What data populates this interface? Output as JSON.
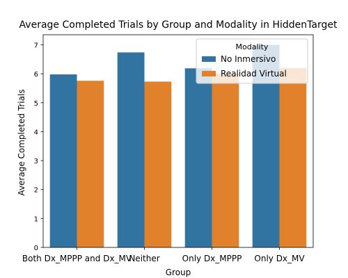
{
  "chart_data": {
    "type": "bar",
    "title": "Average Completed Trials by Group and Modality in HiddenTarget",
    "xlabel": "Group",
    "ylabel": "Average Completed Trials",
    "categories": [
      "Both Dx_MPPP and Dx_MV",
      "Neither",
      "Only Dx_MPPP",
      "Only Dx_MV"
    ],
    "series": [
      {
        "name": "No Inmersivo",
        "color": "#3274a1",
        "values": [
          5.98,
          6.74,
          6.19,
          7.0
        ]
      },
      {
        "name": "Realidad Virtual",
        "color": "#e1812c",
        "values": [
          5.76,
          5.73,
          6.0,
          6.2
        ]
      }
    ],
    "ylim": [
      0,
      7.35
    ],
    "yticks": [
      0,
      1,
      2,
      3,
      4,
      5,
      6,
      7
    ],
    "legend": {
      "title": "Modality",
      "position": "top-right"
    },
    "grid": false
  }
}
